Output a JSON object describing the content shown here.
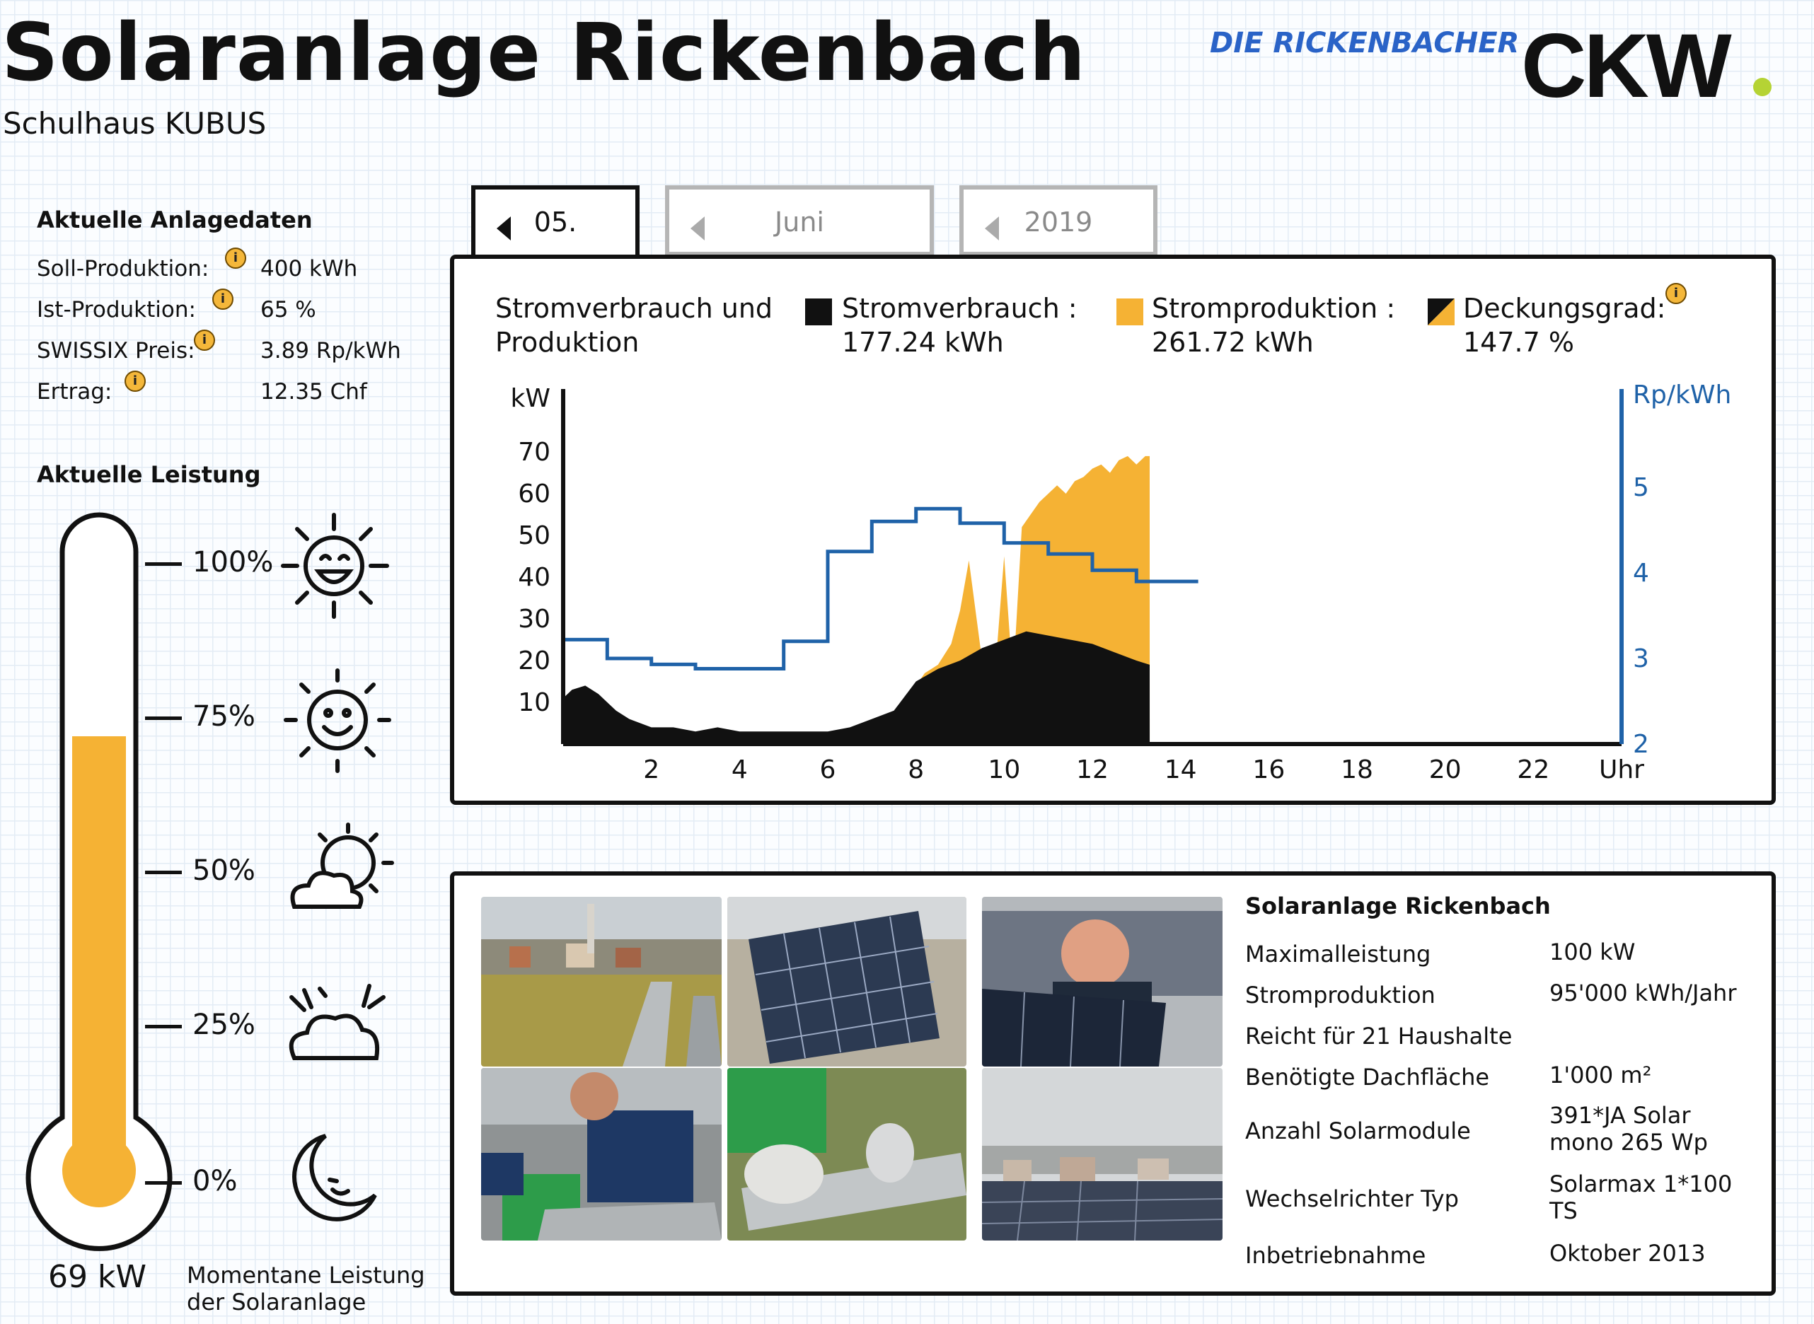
{
  "header": {
    "title": "Solaranlage Rickenbach",
    "subtitle": "Schulhaus KUBUS",
    "tagline": "DIE RICKENBACHER",
    "logo_text": "CKW",
    "logo_dot_color": "#b5d334"
  },
  "anlagedaten": {
    "heading": "Aktuelle Anlagedaten",
    "rows": [
      {
        "label": "Soll-Produktion:",
        "value": "400 kWh"
      },
      {
        "label": "Ist-Produktion:",
        "value": "65 %"
      },
      {
        "label": "SWISSIX Preis:",
        "value": "3.89 Rp/kWh"
      },
      {
        "label": "Ertrag:",
        "value": "12.35 Chf"
      }
    ],
    "info_icon": "i"
  },
  "leistung": {
    "heading": "Aktuelle Leistung",
    "scale": [
      "100%",
      "75%",
      "50%",
      "25%",
      "0%"
    ],
    "level_fraction": 0.69,
    "fill_color": "#f5b234",
    "value_label": "69 kW",
    "caption_line1": "Momentane Leistung",
    "caption_line2": "der Solaranlage",
    "weather_icons": [
      "sun-laughing-icon",
      "sun-smiling-icon",
      "sun-cloud-icon",
      "cloud-icon",
      "moon-icon"
    ]
  },
  "date_tabs": [
    {
      "label": "05.",
      "active": true
    },
    {
      "label": "Juni",
      "active": false
    },
    {
      "label": "2019",
      "active": false
    }
  ],
  "chart_panel": {
    "title_line1": "Stromverbrauch und",
    "title_line2": "Produktion",
    "legend": [
      {
        "label": "Stromverbrauch :",
        "value": "177.24 kWh",
        "color": "#111111"
      },
      {
        "label": "Stromproduktion :",
        "value": "261.72 kWh",
        "color": "#f5b234"
      },
      {
        "label": "Deckungsgrad:",
        "value": "147.7 %",
        "color": "split"
      }
    ]
  },
  "chart_data": {
    "type": "area",
    "ylabel": "kW",
    "y2label": "Rp/kWh",
    "xlabel": "Uhr",
    "x_ticks": [
      "2",
      "4",
      "6",
      "8",
      "10",
      "12",
      "14",
      "16",
      "18",
      "20",
      "22"
    ],
    "xlim": [
      0,
      24
    ],
    "y_ticks": [
      "10",
      "20",
      "30",
      "40",
      "50",
      "60",
      "70"
    ],
    "ylim": [
      0,
      80
    ],
    "y2_ticks": [
      "2",
      "3",
      "4",
      "5"
    ],
    "y2lim": [
      2,
      5.9
    ],
    "production": {
      "color": "#f5b234",
      "x": [
        0,
        6.0,
        6.5,
        7.0,
        7.5,
        7.8,
        8.0,
        8.2,
        8.5,
        8.8,
        9.0,
        9.2,
        9.5,
        9.8,
        10.0,
        10.2,
        10.4,
        10.6,
        10.8,
        11.0,
        11.2,
        11.4,
        11.6,
        11.8,
        12.0,
        12.2,
        12.4,
        12.6,
        12.8,
        13.0,
        13.2,
        13.3
      ],
      "values": [
        0,
        0,
        1,
        4,
        7,
        10,
        14,
        17,
        19,
        24,
        32,
        44,
        20,
        18,
        45,
        15,
        52,
        55,
        58,
        60,
        62,
        60,
        63,
        64,
        66,
        67,
        65,
        68,
        69,
        67,
        69,
        69
      ]
    },
    "consumption": {
      "color": "#111111",
      "x": [
        0,
        0.2,
        0.5,
        0.8,
        1.0,
        1.2,
        1.5,
        2.0,
        2.5,
        3.0,
        3.5,
        4.0,
        4.5,
        5.0,
        5.5,
        6.0,
        6.5,
        7.0,
        7.5,
        8.0,
        8.5,
        9.0,
        9.5,
        10.0,
        10.5,
        11.0,
        11.5,
        12.0,
        12.5,
        13.0,
        13.3
      ],
      "values": [
        11,
        13,
        14,
        12,
        10,
        8,
        6,
        4,
        4,
        3,
        4,
        3,
        3,
        3,
        3,
        3,
        4,
        6,
        8,
        15,
        18,
        20,
        23,
        25,
        27,
        26,
        25,
        24,
        22,
        20,
        19
      ]
    },
    "price": {
      "color": "#1f62a8",
      "x": [
        0,
        1,
        2,
        3,
        4,
        5,
        6,
        7,
        8,
        9,
        10,
        11,
        12,
        13,
        14
      ],
      "values": [
        3.22,
        3.0,
        2.93,
        2.88,
        2.88,
        3.2,
        4.25,
        4.6,
        4.75,
        4.58,
        4.35,
        4.22,
        4.03,
        3.9,
        3.9
      ]
    }
  },
  "facts": {
    "heading": "Solaranlage Rickenbach",
    "rows": [
      {
        "label": "Maximalleistung",
        "value": "100 kW"
      },
      {
        "label": "Stromproduktion",
        "value": "95'000 kWh/Jahr"
      },
      {
        "label": "Reicht für 21 Haushalte",
        "value": ""
      },
      {
        "label": "Benötigte Dachfläche",
        "value": "1'000 m²"
      },
      {
        "label": "Anzahl Solarmodule",
        "value": "391*JA Solar mono 265 Wp"
      },
      {
        "label": "Wechselrichter Typ",
        "value": "Solarmax 1*100 TS"
      },
      {
        "label": "Inbetriebnahme",
        "value": "Oktober 2013"
      }
    ]
  },
  "photos": [
    "rooftop-village-photo",
    "solar-panel-closeup-photo",
    "worker-holding-panel-photo",
    "workers-installing-photo",
    "gloved-hands-photo",
    "foggy-panels-photo"
  ]
}
